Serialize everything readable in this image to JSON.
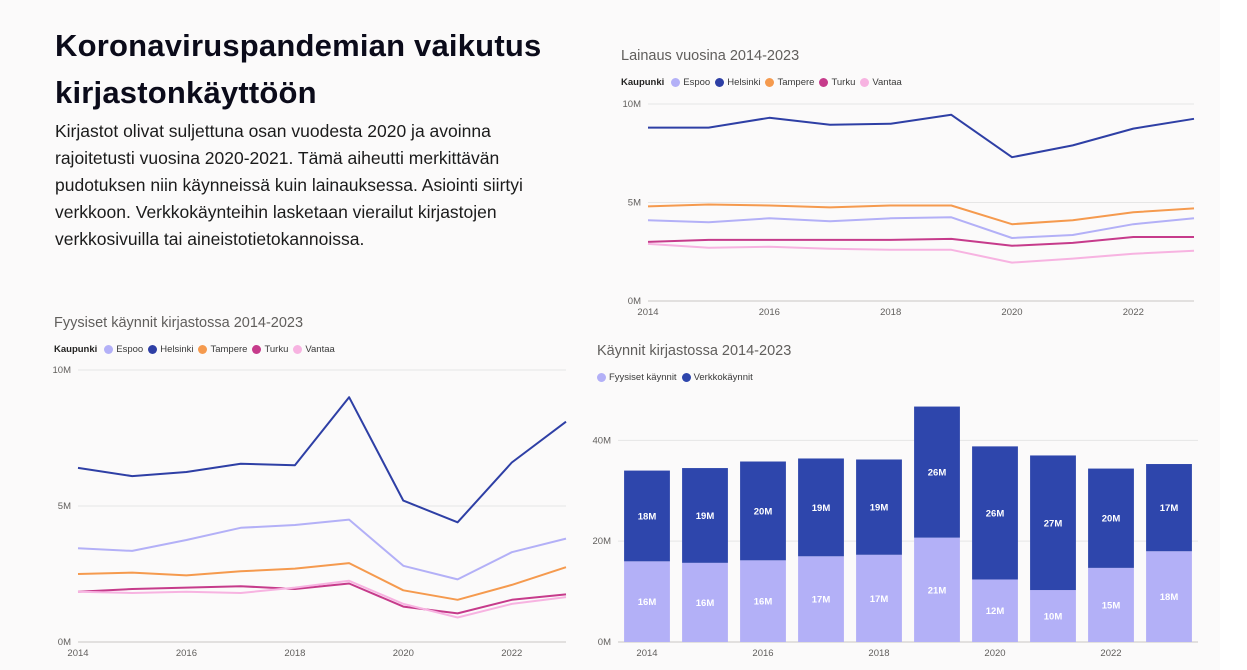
{
  "page": {
    "headline": "Koronaviruspandemian vaikutus kirjastonkäyttöön",
    "intro": "Kirjastot olivat suljettuna osan vuodesta 2020 ja avoinna rajoitetusti vuosina 2020-2021. Tämä aiheutti merkittävän pudotuksen niin käynneissä kuin lainauksessa. Asiointi siirtyi verkkoon. Verkkokäynteihin lasketaan vierailut kirjastojen verkkosivuilla tai aineistotietokannoissa."
  },
  "chart_data": [
    {
      "id": "loans",
      "type": "line",
      "title": "Lainaus vuosina 2014-2023",
      "legend_title": "Kaupunki",
      "legend_position": "top-left",
      "grid": true,
      "x": [
        2014,
        2015,
        2016,
        2017,
        2018,
        2019,
        2020,
        2021,
        2022,
        2023
      ],
      "x_ticks": [
        "2014",
        "2016",
        "2018",
        "2020",
        "2022"
      ],
      "y_ticks": [
        "0M",
        "5M",
        "10M"
      ],
      "ylim": [
        0,
        10000000
      ],
      "series": [
        {
          "name": "Espoo",
          "color": "#b3b0f7",
          "values": [
            4100000,
            4000000,
            4200000,
            4050000,
            4200000,
            4250000,
            3200000,
            3350000,
            3900000,
            4200000
          ]
        },
        {
          "name": "Helsinki",
          "color": "#2e3fa5",
          "values": [
            8800000,
            8800000,
            9300000,
            8950000,
            9000000,
            9450000,
            7300000,
            7900000,
            8750000,
            9250000
          ]
        },
        {
          "name": "Tampere",
          "color": "#f59a4e",
          "values": [
            4800000,
            4900000,
            4850000,
            4750000,
            4850000,
            4850000,
            3900000,
            4100000,
            4500000,
            4700000
          ]
        },
        {
          "name": "Turku",
          "color": "#c63b8b",
          "values": [
            3000000,
            3100000,
            3100000,
            3100000,
            3100000,
            3150000,
            2800000,
            2950000,
            3250000,
            3250000
          ]
        },
        {
          "name": "Vantaa",
          "color": "#f7b3e1",
          "values": [
            2900000,
            2700000,
            2750000,
            2650000,
            2600000,
            2600000,
            1950000,
            2150000,
            2400000,
            2550000
          ]
        }
      ]
    },
    {
      "id": "physical",
      "type": "line",
      "title": "Fyysiset käynnit kirjastossa 2014-2023",
      "legend_title": "Kaupunki",
      "legend_position": "top-left",
      "grid": true,
      "x": [
        2014,
        2015,
        2016,
        2017,
        2018,
        2019,
        2020,
        2021,
        2022,
        2023
      ],
      "x_ticks": [
        "2014",
        "2016",
        "2018",
        "2020",
        "2022"
      ],
      "y_ticks": [
        "0M",
        "5M",
        "10M"
      ],
      "ylim": [
        0,
        10000000
      ],
      "series": [
        {
          "name": "Espoo",
          "color": "#b3b0f7",
          "values": [
            3450000,
            3350000,
            3750000,
            4200000,
            4300000,
            4500000,
            2800000,
            2300000,
            3300000,
            3800000
          ]
        },
        {
          "name": "Helsinki",
          "color": "#2e3fa5",
          "values": [
            6400000,
            6100000,
            6250000,
            6550000,
            6500000,
            9000000,
            5200000,
            4400000,
            6600000,
            8100000
          ]
        },
        {
          "name": "Tampere",
          "color": "#f59a4e",
          "values": [
            2500000,
            2550000,
            2450000,
            2600000,
            2700000,
            2900000,
            1900000,
            1550000,
            2100000,
            2750000
          ]
        },
        {
          "name": "Turku",
          "color": "#c63b8b",
          "values": [
            1850000,
            1950000,
            2000000,
            2050000,
            1950000,
            2150000,
            1300000,
            1050000,
            1550000,
            1750000
          ]
        },
        {
          "name": "Vantaa",
          "color": "#f7b3e1",
          "values": [
            1850000,
            1800000,
            1850000,
            1800000,
            2000000,
            2250000,
            1400000,
            900000,
            1400000,
            1650000
          ]
        }
      ]
    },
    {
      "id": "visits",
      "type": "bar",
      "stacked": true,
      "title": "Käynnit kirjastossa 2014-2023",
      "legend_position": "top-left",
      "grid": true,
      "categories": [
        2014,
        2015,
        2016,
        2017,
        2018,
        2019,
        2020,
        2021,
        2022,
        2023
      ],
      "x_ticks": [
        "2014",
        "2016",
        "2018",
        "2020",
        "2022"
      ],
      "y_ticks": [
        "0M",
        "20M",
        "40M"
      ],
      "ylim": [
        0,
        48000000
      ],
      "series": [
        {
          "name": "Fyysiset käynnit",
          "color": "#b3b0f7",
          "label_color": "#ffffff",
          "values": [
            16000000,
            15700000,
            16200000,
            17000000,
            17300000,
            20700000,
            12400000,
            10300000,
            14700000,
            18000000
          ],
          "labels": [
            "16M",
            "16M",
            "16M",
            "17M",
            "17M",
            "21M",
            "12M",
            "10M",
            "15M",
            "18M"
          ]
        },
        {
          "name": "Verkkokäynnit",
          "color": "#2e46ac",
          "label_color": "#ffffff",
          "values": [
            18000000,
            18800000,
            19600000,
            19400000,
            18900000,
            26000000,
            26400000,
            26700000,
            19700000,
            17300000
          ],
          "labels": [
            "18M",
            "19M",
            "20M",
            "19M",
            "19M",
            "26M",
            "26M",
            "27M",
            "20M",
            "17M"
          ]
        }
      ]
    }
  ]
}
